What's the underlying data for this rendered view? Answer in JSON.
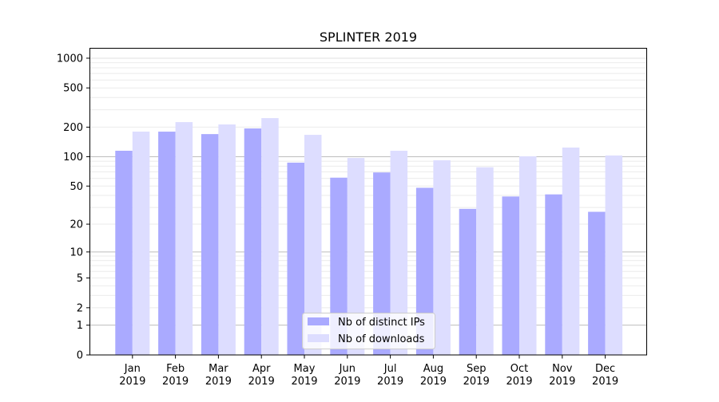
{
  "chart_data": {
    "type": "bar",
    "title": "SPLINTER 2019",
    "xlabel": "",
    "ylabel": "",
    "yscale": "log(1+y)",
    "ylim": [
      0,
      1250
    ],
    "yticks": [
      0,
      1,
      2,
      5,
      10,
      20,
      50,
      100,
      200,
      500,
      1000
    ],
    "grid": true,
    "legend_position": "lower-center",
    "categories": [
      "Jan\n2019",
      "Feb\n2019",
      "Mar\n2019",
      "Apr\n2019",
      "May\n2019",
      "Jun\n2019",
      "Jul\n2019",
      "Aug\n2019",
      "Sep\n2019",
      "Oct\n2019",
      "Nov\n2019",
      "Dec\n2019"
    ],
    "series": [
      {
        "name": "Nb of distinct IPs",
        "color": "#aaaaff",
        "values": [
          115,
          180,
          170,
          194,
          87,
          61,
          69,
          48,
          29,
          39,
          41,
          27
        ]
      },
      {
        "name": "Nb of downloads",
        "color": "#ddddff",
        "values": [
          180,
          225,
          213,
          247,
          167,
          97,
          115,
          92,
          78,
          101,
          124,
          103
        ]
      }
    ]
  }
}
